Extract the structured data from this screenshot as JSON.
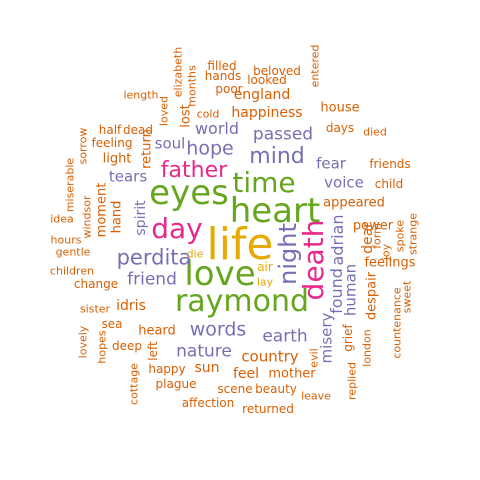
{
  "colors": {
    "orange": "#d95f02",
    "purple": "#7570b3",
    "magenta": "#e7298a",
    "green": "#66a61e",
    "gold": "#e6ab02"
  },
  "words": [
    {
      "text": "life",
      "color": "gold"
    },
    {
      "text": "heart",
      "color": "green"
    },
    {
      "text": "love",
      "color": "green"
    },
    {
      "text": "raymond",
      "color": "green"
    },
    {
      "text": "eyes",
      "color": "green"
    },
    {
      "text": "time",
      "color": "green"
    },
    {
      "text": "death",
      "color": "magenta"
    },
    {
      "text": "day",
      "color": "magenta"
    },
    {
      "text": "father",
      "color": "magenta"
    },
    {
      "text": "night",
      "color": "purple"
    },
    {
      "text": "mind",
      "color": "purple"
    },
    {
      "text": "perdita",
      "color": "purple"
    },
    {
      "text": "hope",
      "color": "purple"
    },
    {
      "text": "words",
      "color": "purple"
    },
    {
      "text": "nature",
      "color": "purple"
    },
    {
      "text": "earth",
      "color": "purple"
    },
    {
      "text": "friend",
      "color": "purple"
    },
    {
      "text": "passed",
      "color": "purple"
    },
    {
      "text": "world",
      "color": "purple"
    },
    {
      "text": "soul",
      "color": "purple"
    },
    {
      "text": "tears",
      "color": "purple"
    },
    {
      "text": "voice",
      "color": "purple"
    },
    {
      "text": "fear",
      "color": "purple"
    },
    {
      "text": "adrian",
      "color": "purple"
    },
    {
      "text": "found",
      "color": "purple"
    },
    {
      "text": "misery",
      "color": "purple"
    },
    {
      "text": "human",
      "color": "purple"
    },
    {
      "text": "spirit",
      "color": "purple"
    },
    {
      "text": "air",
      "color": "gold"
    },
    {
      "text": "die",
      "color": "gold"
    },
    {
      "text": "lay",
      "color": "gold"
    },
    {
      "text": "happiness",
      "color": "orange"
    },
    {
      "text": "england",
      "color": "orange"
    },
    {
      "text": "house",
      "color": "orange"
    },
    {
      "text": "days",
      "color": "orange"
    },
    {
      "text": "died",
      "color": "orange"
    },
    {
      "text": "friends",
      "color": "orange"
    },
    {
      "text": "appeared",
      "color": "orange"
    },
    {
      "text": "child",
      "color": "orange"
    },
    {
      "text": "power",
      "color": "orange"
    },
    {
      "text": "joy",
      "color": "orange"
    },
    {
      "text": "dear",
      "color": "orange"
    },
    {
      "text": "form",
      "color": "orange"
    },
    {
      "text": "spoke",
      "color": "orange"
    },
    {
      "text": "strange",
      "color": "orange"
    },
    {
      "text": "feelings",
      "color": "orange"
    },
    {
      "text": "despair",
      "color": "orange"
    },
    {
      "text": "sweet",
      "color": "orange"
    },
    {
      "text": "countenance",
      "color": "orange"
    },
    {
      "text": "grief",
      "color": "orange"
    },
    {
      "text": "london",
      "color": "orange"
    },
    {
      "text": "replied",
      "color": "orange"
    },
    {
      "text": "evil",
      "color": "orange"
    },
    {
      "text": "country",
      "color": "orange"
    },
    {
      "text": "feel",
      "color": "orange"
    },
    {
      "text": "mother",
      "color": "orange"
    },
    {
      "text": "sun",
      "color": "orange"
    },
    {
      "text": "happy",
      "color": "orange"
    },
    {
      "text": "scene",
      "color": "orange"
    },
    {
      "text": "beauty",
      "color": "orange"
    },
    {
      "text": "leave",
      "color": "orange"
    },
    {
      "text": "plague",
      "color": "orange"
    },
    {
      "text": "affection",
      "color": "orange"
    },
    {
      "text": "returned",
      "color": "orange"
    },
    {
      "text": "heard",
      "color": "orange"
    },
    {
      "text": "left",
      "color": "orange"
    },
    {
      "text": "deep",
      "color": "orange"
    },
    {
      "text": "sea",
      "color": "orange"
    },
    {
      "text": "idris",
      "color": "orange"
    },
    {
      "text": "sister",
      "color": "orange"
    },
    {
      "text": "hopes",
      "color": "orange"
    },
    {
      "text": "lovely",
      "color": "orange"
    },
    {
      "text": "cottage",
      "color": "orange"
    },
    {
      "text": "change",
      "color": "orange"
    },
    {
      "text": "children",
      "color": "orange"
    },
    {
      "text": "gentle",
      "color": "orange"
    },
    {
      "text": "hours",
      "color": "orange"
    },
    {
      "text": "idea",
      "color": "orange"
    },
    {
      "text": "windsor",
      "color": "orange"
    },
    {
      "text": "miserable",
      "color": "orange"
    },
    {
      "text": "moment",
      "color": "orange"
    },
    {
      "text": "hand",
      "color": "orange"
    },
    {
      "text": "light",
      "color": "orange"
    },
    {
      "text": "return",
      "color": "orange"
    },
    {
      "text": "feeling",
      "color": "orange"
    },
    {
      "text": "half",
      "color": "orange"
    },
    {
      "text": "dead",
      "color": "orange"
    },
    {
      "text": "sorrow",
      "color": "orange"
    },
    {
      "text": "loved",
      "color": "orange"
    },
    {
      "text": "lost",
      "color": "orange"
    },
    {
      "text": "length",
      "color": "orange"
    },
    {
      "text": "elizabeth",
      "color": "orange"
    },
    {
      "text": "months",
      "color": "orange"
    },
    {
      "text": "filled",
      "color": "orange"
    },
    {
      "text": "hands",
      "color": "orange"
    },
    {
      "text": "poor",
      "color": "orange"
    },
    {
      "text": "cold",
      "color": "orange"
    },
    {
      "text": "beloved",
      "color": "orange"
    },
    {
      "text": "looked",
      "color": "orange"
    },
    {
      "text": "entered",
      "color": "orange"
    }
  ]
}
